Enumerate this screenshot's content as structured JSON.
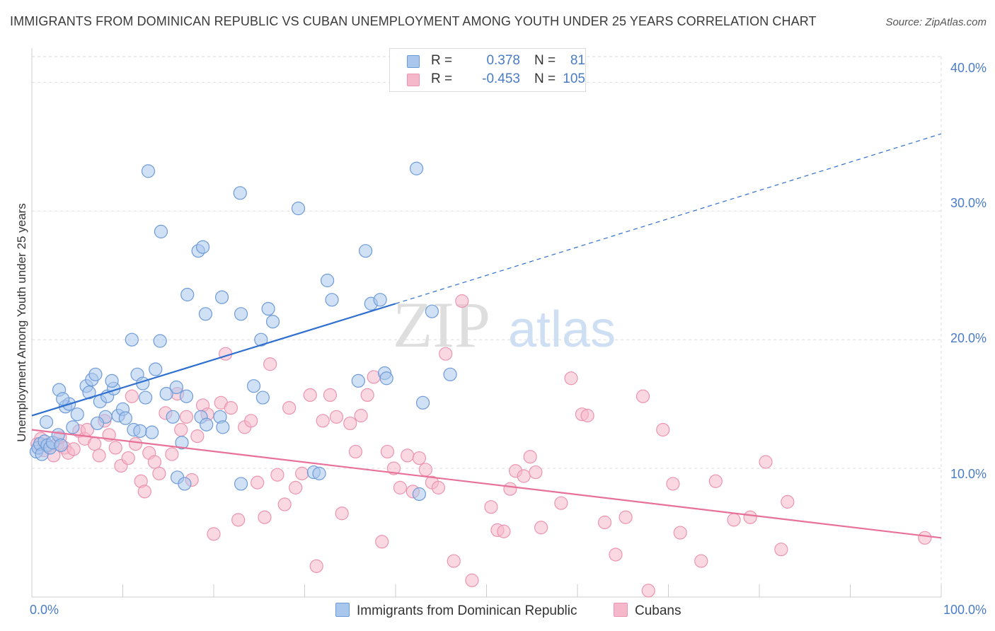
{
  "title": "IMMIGRANTS FROM DOMINICAN REPUBLIC VS CUBAN UNEMPLOYMENT AMONG YOUTH UNDER 25 YEARS CORRELATION CHART",
  "source": "Source: ZipAtlas.com",
  "watermark": {
    "zip": "ZIP",
    "atlas": "atlas"
  },
  "legend": {
    "r_label": "R =",
    "n_label": "N =",
    "rows": [
      {
        "r": "0.378",
        "n": "81",
        "color": "#4a7cc6"
      },
      {
        "r": "-0.453",
        "n": "105",
        "color": "#4a7cc6"
      }
    ]
  },
  "colors": {
    "blue_fill": "#a9c6ec",
    "blue_stroke": "#6d9bd8",
    "blue_line": "#2f6fcf",
    "pink_fill": "#f5b8cb",
    "pink_stroke": "#ec94b0",
    "pink_line": "#e8719a",
    "grid": "#dddddd",
    "tick_label": "#4a7cc6"
  },
  "chart_data": {
    "type": "scatter",
    "title": "IMMIGRANTS FROM DOMINICAN REPUBLIC VS CUBAN UNEMPLOYMENT AMONG YOUTH UNDER 25 YEARS CORRELATION CHART",
    "xlabel": "",
    "ylabel": "Unemployment Among Youth under 25 years",
    "xlim": [
      0,
      100
    ],
    "ylim": [
      0,
      42
    ],
    "x_tick_labels": [
      "0.0%",
      "100.0%"
    ],
    "y_ticks": [
      10,
      20,
      30,
      40
    ],
    "y_tick_labels": [
      "10.0%",
      "20.0%",
      "30.0%",
      "40.0%"
    ],
    "grid": true,
    "legend_position": "top-center",
    "series": [
      {
        "name": "Immigrants from Dominican Republic",
        "color": "#a9c6ec",
        "r": 0.378,
        "n": 81,
        "trend": {
          "x": [
            0,
            40
          ],
          "y": [
            14.1,
            22.8
          ],
          "dashed_to": [
            100,
            36.0
          ]
        },
        "points": [
          [
            0.5,
            11.3
          ],
          [
            0.7,
            11.6
          ],
          [
            0.9,
            11.9
          ],
          [
            1.1,
            11.1
          ],
          [
            1.4,
            12.1
          ],
          [
            1.7,
            11.8
          ],
          [
            2.0,
            11.6
          ],
          [
            2.3,
            12.0
          ],
          [
            1.6,
            13.6
          ],
          [
            2.9,
            12.6
          ],
          [
            3.2,
            11.8
          ],
          [
            3.7,
            14.8
          ],
          [
            4.1,
            15.0
          ],
          [
            3.0,
            16.1
          ],
          [
            4.5,
            13.2
          ],
          [
            5.0,
            14.2
          ],
          [
            3.4,
            15.4
          ],
          [
            6.0,
            16.4
          ],
          [
            6.3,
            15.9
          ],
          [
            6.6,
            16.9
          ],
          [
            7.0,
            17.3
          ],
          [
            7.5,
            15.2
          ],
          [
            8.1,
            14.0
          ],
          [
            8.3,
            15.6
          ],
          [
            7.2,
            13.5
          ],
          [
            9.0,
            16.2
          ],
          [
            9.5,
            14.1
          ],
          [
            8.8,
            16.8
          ],
          [
            10.0,
            14.6
          ],
          [
            10.3,
            13.9
          ],
          [
            11.2,
            13.0
          ],
          [
            11.6,
            17.3
          ],
          [
            12.2,
            16.6
          ],
          [
            12.5,
            15.5
          ],
          [
            13.2,
            12.8
          ],
          [
            13.6,
            17.7
          ],
          [
            11.9,
            12.9
          ],
          [
            14.1,
            19.9
          ],
          [
            11.0,
            20.0
          ],
          [
            14.8,
            15.8
          ],
          [
            15.5,
            14.0
          ],
          [
            15.9,
            16.3
          ],
          [
            17.0,
            15.6
          ],
          [
            16.5,
            12.0
          ],
          [
            18.6,
            14.0
          ],
          [
            19.2,
            13.4
          ],
          [
            20.7,
            14.0
          ],
          [
            21.0,
            13.2
          ],
          [
            19.1,
            22.0
          ],
          [
            18.3,
            26.9
          ],
          [
            17.1,
            23.5
          ],
          [
            14.2,
            28.4
          ],
          [
            18.8,
            27.2
          ],
          [
            22.9,
            31.4
          ],
          [
            12.8,
            33.1
          ],
          [
            20.9,
            23.3
          ],
          [
            23.0,
            22.0
          ],
          [
            26.5,
            21.4
          ],
          [
            26.0,
            22.4
          ],
          [
            29.3,
            30.2
          ],
          [
            25.2,
            20.0
          ],
          [
            24.4,
            16.4
          ],
          [
            25.4,
            15.5
          ],
          [
            32.5,
            24.6
          ],
          [
            33.0,
            23.1
          ],
          [
            36.7,
            26.9
          ],
          [
            37.3,
            22.8
          ],
          [
            38.3,
            23.1
          ],
          [
            35.9,
            16.8
          ],
          [
            38.8,
            17.4
          ],
          [
            39.0,
            17.0
          ],
          [
            42.3,
            33.3
          ],
          [
            44.0,
            22.2
          ],
          [
            46.0,
            17.3
          ],
          [
            43.0,
            15.1
          ],
          [
            31.0,
            9.7
          ],
          [
            31.6,
            9.6
          ],
          [
            42.6,
            8.0
          ],
          [
            16.0,
            9.3
          ],
          [
            16.8,
            8.8
          ],
          [
            23.0,
            8.8
          ]
        ]
      },
      {
        "name": "Cubans",
        "color": "#f5b8cb",
        "r": -0.453,
        "n": 105,
        "trend": {
          "x": [
            0,
            100
          ],
          "y": [
            13.0,
            4.6
          ]
        },
        "points": [
          [
            0.6,
            11.9
          ],
          [
            1.0,
            12.3
          ],
          [
            1.3,
            11.4
          ],
          [
            1.8,
            11.7
          ],
          [
            2.4,
            11.0
          ],
          [
            2.8,
            11.9
          ],
          [
            3.1,
            12.4
          ],
          [
            3.6,
            11.6
          ],
          [
            4.0,
            11.2
          ],
          [
            4.6,
            11.5
          ],
          [
            5.2,
            12.9
          ],
          [
            5.8,
            12.3
          ],
          [
            6.1,
            13.0
          ],
          [
            6.9,
            11.9
          ],
          [
            7.4,
            11.0
          ],
          [
            8.0,
            13.7
          ],
          [
            8.5,
            12.6
          ],
          [
            9.2,
            11.6
          ],
          [
            9.8,
            10.2
          ],
          [
            10.6,
            10.8
          ],
          [
            11.0,
            15.6
          ],
          [
            11.4,
            11.9
          ],
          [
            12.0,
            9.0
          ],
          [
            12.4,
            8.2
          ],
          [
            12.9,
            11.2
          ],
          [
            13.5,
            10.5
          ],
          [
            14.0,
            9.6
          ],
          [
            14.7,
            14.3
          ],
          [
            15.4,
            11.1
          ],
          [
            16.0,
            15.8
          ],
          [
            16.4,
            13.0
          ],
          [
            17.0,
            14.0
          ],
          [
            17.6,
            9.1
          ],
          [
            18.2,
            12.5
          ],
          [
            18.8,
            14.9
          ],
          [
            19.3,
            14.2
          ],
          [
            20.0,
            4.9
          ],
          [
            20.8,
            15.1
          ],
          [
            21.3,
            18.9
          ],
          [
            21.9,
            14.7
          ],
          [
            22.7,
            6.0
          ],
          [
            23.4,
            13.2
          ],
          [
            24.1,
            13.7
          ],
          [
            24.8,
            8.9
          ],
          [
            25.6,
            6.2
          ],
          [
            26.2,
            18.1
          ],
          [
            27.0,
            9.5
          ],
          [
            27.8,
            7.2
          ],
          [
            28.3,
            14.7
          ],
          [
            29.0,
            8.5
          ],
          [
            29.7,
            9.6
          ],
          [
            30.6,
            15.7
          ],
          [
            31.3,
            2.4
          ],
          [
            32.0,
            13.7
          ],
          [
            32.8,
            15.7
          ],
          [
            33.5,
            14.0
          ],
          [
            34.1,
            6.5
          ],
          [
            35.0,
            13.5
          ],
          [
            35.6,
            11.3
          ],
          [
            36.2,
            14.1
          ],
          [
            36.9,
            15.7
          ],
          [
            37.6,
            17.1
          ],
          [
            38.5,
            4.3
          ],
          [
            39.1,
            11.3
          ],
          [
            39.8,
            10.0
          ],
          [
            40.5,
            8.5
          ],
          [
            41.3,
            11.0
          ],
          [
            41.9,
            8.2
          ],
          [
            42.6,
            10.8
          ],
          [
            43.3,
            9.9
          ],
          [
            44.0,
            8.9
          ],
          [
            44.7,
            8.5
          ],
          [
            45.5,
            18.9
          ],
          [
            46.4,
            2.8
          ],
          [
            47.3,
            23.0
          ],
          [
            48.4,
            1.3
          ],
          [
            50.5,
            7.0
          ],
          [
            51.2,
            5.2
          ],
          [
            51.9,
            5.1
          ],
          [
            52.6,
            8.4
          ],
          [
            53.2,
            9.8
          ],
          [
            54.1,
            9.4
          ],
          [
            54.8,
            10.9
          ],
          [
            55.4,
            9.7
          ],
          [
            56.0,
            5.4
          ],
          [
            58.2,
            7.3
          ],
          [
            59.3,
            17.0
          ],
          [
            60.5,
            14.2
          ],
          [
            61.1,
            14.1
          ],
          [
            63.0,
            5.8
          ],
          [
            64.2,
            3.3
          ],
          [
            65.3,
            6.2
          ],
          [
            67.2,
            15.6
          ],
          [
            67.8,
            0.5
          ],
          [
            69.4,
            13.0
          ],
          [
            70.5,
            8.8
          ],
          [
            71.3,
            5.0
          ],
          [
            73.6,
            2.8
          ],
          [
            75.2,
            9.0
          ],
          [
            77.2,
            6.0
          ],
          [
            79.0,
            6.2
          ],
          [
            80.7,
            10.5
          ],
          [
            82.4,
            3.7
          ],
          [
            83.1,
            7.4
          ],
          [
            98.2,
            4.6
          ]
        ]
      }
    ]
  }
}
